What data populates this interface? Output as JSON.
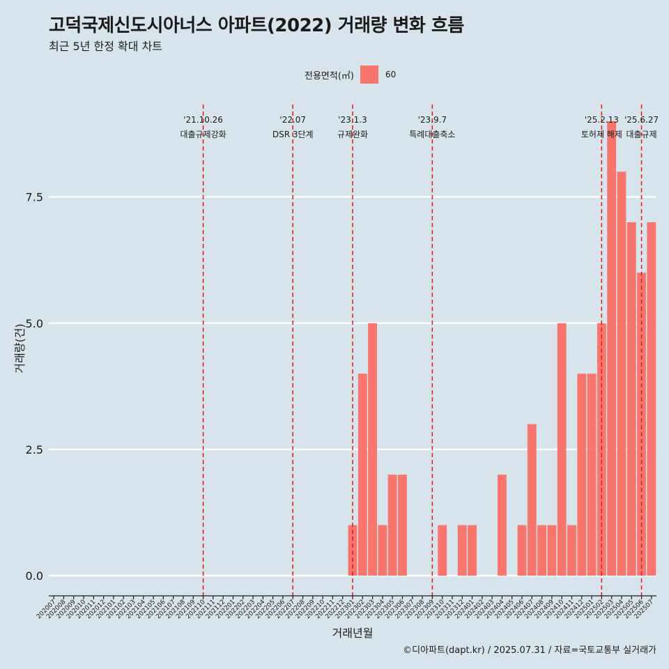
{
  "title": "고덕국제신도시아너스 아파트(2022) 거래량 변화 흐름",
  "subtitle": "최근 5년 한정 확대 차트",
  "caption": "©디아파트(dapt.kr) / 2025.07.31 / 자료=국토교통부 실거래가",
  "colors": {
    "background": "#d8e4ec",
    "bar": "#f8766d",
    "event_line": "#e8141a",
    "grid": "#ffffff"
  },
  "chart_data": {
    "type": "bar",
    "xlabel": "거래년월",
    "ylabel": "거래량(건)",
    "ylim": [
      -0.4,
      9.4
    ],
    "yticks": [
      "0.0",
      "2.5",
      "5.0",
      "7.5"
    ],
    "legend": {
      "title": "전용면적(㎡)",
      "entries": [
        "60"
      ],
      "placement": "top"
    },
    "grid": "horizontal major lines",
    "categories": [
      "202007",
      "202008",
      "202009",
      "202010",
      "202011",
      "202012",
      "202101",
      "202102",
      "202103",
      "202104",
      "202105",
      "202106",
      "202107",
      "202108",
      "202109",
      "202110",
      "202111",
      "202112",
      "202201",
      "202202",
      "202203",
      "202204",
      "202205",
      "202206",
      "202207",
      "202208",
      "202209",
      "202210",
      "202211",
      "202212",
      "202301",
      "202302",
      "202303",
      "202304",
      "202305",
      "202306",
      "202307",
      "202308",
      "202309",
      "202310",
      "202311",
      "202312",
      "202401",
      "202402",
      "202403",
      "202404",
      "202405",
      "202406",
      "202407",
      "202408",
      "202409",
      "202410",
      "202411",
      "202412",
      "202501",
      "202502",
      "202503",
      "202504",
      "202505",
      "202506",
      "202507"
    ],
    "series": [
      {
        "name": "60",
        "values": [
          0,
          0,
          0,
          0,
          0,
          0,
          0,
          0,
          0,
          0,
          0,
          0,
          0,
          0,
          0,
          0,
          0,
          0,
          0,
          0,
          0,
          0,
          0,
          0,
          0,
          0,
          0,
          0,
          0,
          0,
          1,
          4,
          5,
          1,
          2,
          2,
          0,
          0,
          0,
          1,
          0,
          1,
          1,
          0,
          0,
          2,
          0,
          1,
          3,
          1,
          1,
          5,
          1,
          4,
          4,
          5,
          9,
          8,
          7,
          6,
          7
        ]
      }
    ],
    "annotations": [
      {
        "month": "202110",
        "date": "'21.10.26",
        "label": "대출규제강화"
      },
      {
        "month": "202207",
        "date": "'22.07",
        "label": "DSR 3단계"
      },
      {
        "month": "202301",
        "date": "'23.1.3",
        "label": "규제완화"
      },
      {
        "month": "202309",
        "date": "'23.9.7",
        "label": "특례대출축소"
      },
      {
        "month": "202502",
        "date": "'25.2.13",
        "label": "토허제 해제"
      },
      {
        "month": "202506",
        "date": "'25.6.27",
        "label": "대출규제"
      }
    ]
  }
}
